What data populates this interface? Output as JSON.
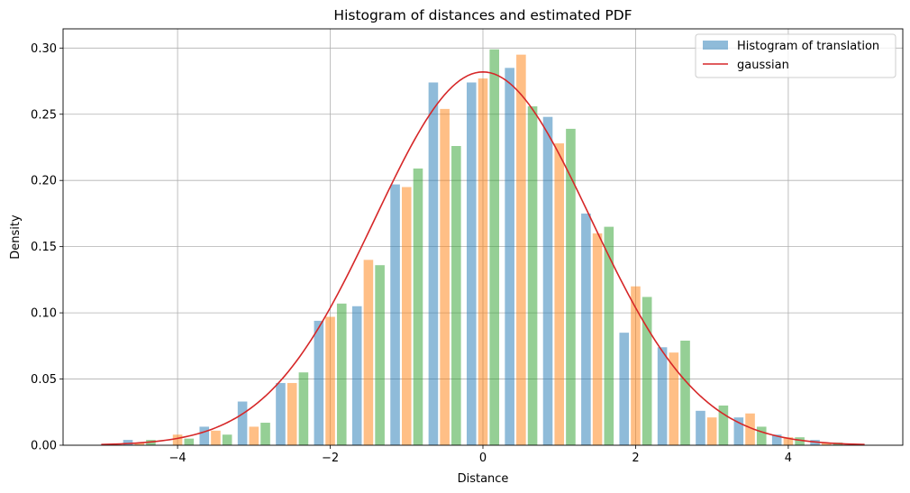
{
  "chart_data": {
    "type": "bar",
    "title": "Histogram of distances and estimated PDF",
    "xlabel": "Distance",
    "ylabel": "Density",
    "xlim": [
      -5.5,
      5.5
    ],
    "ylim": [
      0,
      0.3145
    ],
    "grid": true,
    "legend_position": "top-right",
    "x_ticks": [
      -4,
      -2,
      0,
      2,
      4
    ],
    "x_tick_labels": [
      "−4",
      "−2",
      "0",
      "2",
      "4"
    ],
    "y_ticks": [
      0.0,
      0.05,
      0.1,
      0.15,
      0.2,
      0.25,
      0.3
    ],
    "y_tick_labels": [
      "0.00",
      "0.05",
      "0.10",
      "0.15",
      "0.20",
      "0.25",
      "0.30"
    ],
    "bin_width": 0.5,
    "series": [
      {
        "name": "Histogram of translation",
        "color": "#1f77b4",
        "alpha": 0.5,
        "bin_left": [
          -4.9,
          -4.4,
          -3.9,
          -3.4,
          -2.9,
          -2.4,
          -1.9,
          -1.4,
          -0.9,
          -0.4,
          0.1,
          0.6,
          1.1,
          1.6,
          2.1,
          2.6,
          3.1,
          3.6,
          4.1
        ],
        "values": [
          0.004,
          0.0,
          0.014,
          0.033,
          0.047,
          0.094,
          0.105,
          0.197,
          0.274,
          0.274,
          0.285,
          0.248,
          0.175,
          0.085,
          0.074,
          0.026,
          0.021,
          0.008,
          0.004
        ]
      },
      {
        "color": "#ff7f0e",
        "alpha": 0.5,
        "bin_left": [
          -4.75,
          -4.25,
          -3.75,
          -3.25,
          -2.75,
          -2.25,
          -1.75,
          -1.25,
          -0.75,
          -0.25,
          0.25,
          0.75,
          1.25,
          1.75,
          2.25,
          2.75,
          3.25,
          3.75,
          4.25
        ],
        "values": [
          0.002,
          0.008,
          0.011,
          0.014,
          0.047,
          0.097,
          0.14,
          0.195,
          0.254,
          0.277,
          0.295,
          0.228,
          0.16,
          0.12,
          0.07,
          0.021,
          0.024,
          0.006,
          0.002
        ]
      },
      {
        "color": "#2ca02c",
        "alpha": 0.5,
        "bin_left": [
          -4.6,
          -4.1,
          -3.6,
          -3.1,
          -2.6,
          -2.1,
          -1.6,
          -1.1,
          -0.6,
          -0.1,
          0.4,
          0.9,
          1.4,
          1.9,
          2.4,
          2.9,
          3.4,
          3.9,
          4.4
        ],
        "values": [
          0.004,
          0.005,
          0.008,
          0.017,
          0.055,
          0.107,
          0.136,
          0.209,
          0.226,
          0.299,
          0.256,
          0.239,
          0.165,
          0.112,
          0.079,
          0.03,
          0.014,
          0.006,
          0.002
        ]
      }
    ],
    "line": {
      "name": "gaussian",
      "color": "#d62728",
      "mean": 0.0,
      "std": 1.415,
      "x_range": [
        -5.0,
        5.0
      ],
      "samples": 200
    }
  }
}
